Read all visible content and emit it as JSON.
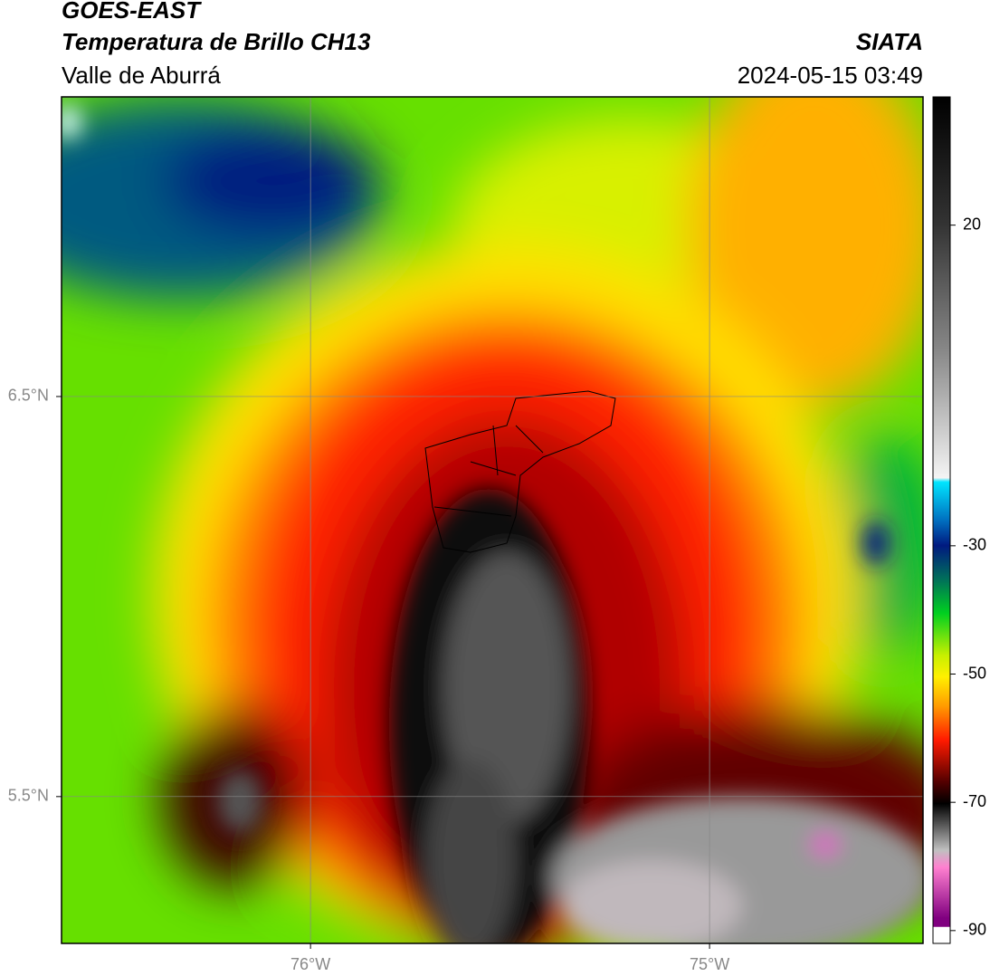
{
  "header": {
    "title": "GOES-EAST",
    "subtitle": "Temperatura de Brillo CH13",
    "region": "Valle de Aburrá",
    "source": "SIATA",
    "datetime": "2024-05-15 03:49"
  },
  "map": {
    "xlim": [
      -76.624,
      -74.465
    ],
    "ylim": [
      5.133,
      7.249
    ],
    "xticks": [
      {
        "value": -76,
        "label": "76°W"
      },
      {
        "value": -75,
        "label": "75°W"
      }
    ],
    "yticks": [
      {
        "value": 6.5,
        "label": "6.5°N"
      },
      {
        "value": 5.5,
        "label": "5.5°N"
      }
    ],
    "grid": true
  },
  "colorbar": {
    "lim": [
      -92,
      40
    ],
    "ticks": [
      20,
      -30,
      -50,
      -70,
      -90
    ]
  }
}
